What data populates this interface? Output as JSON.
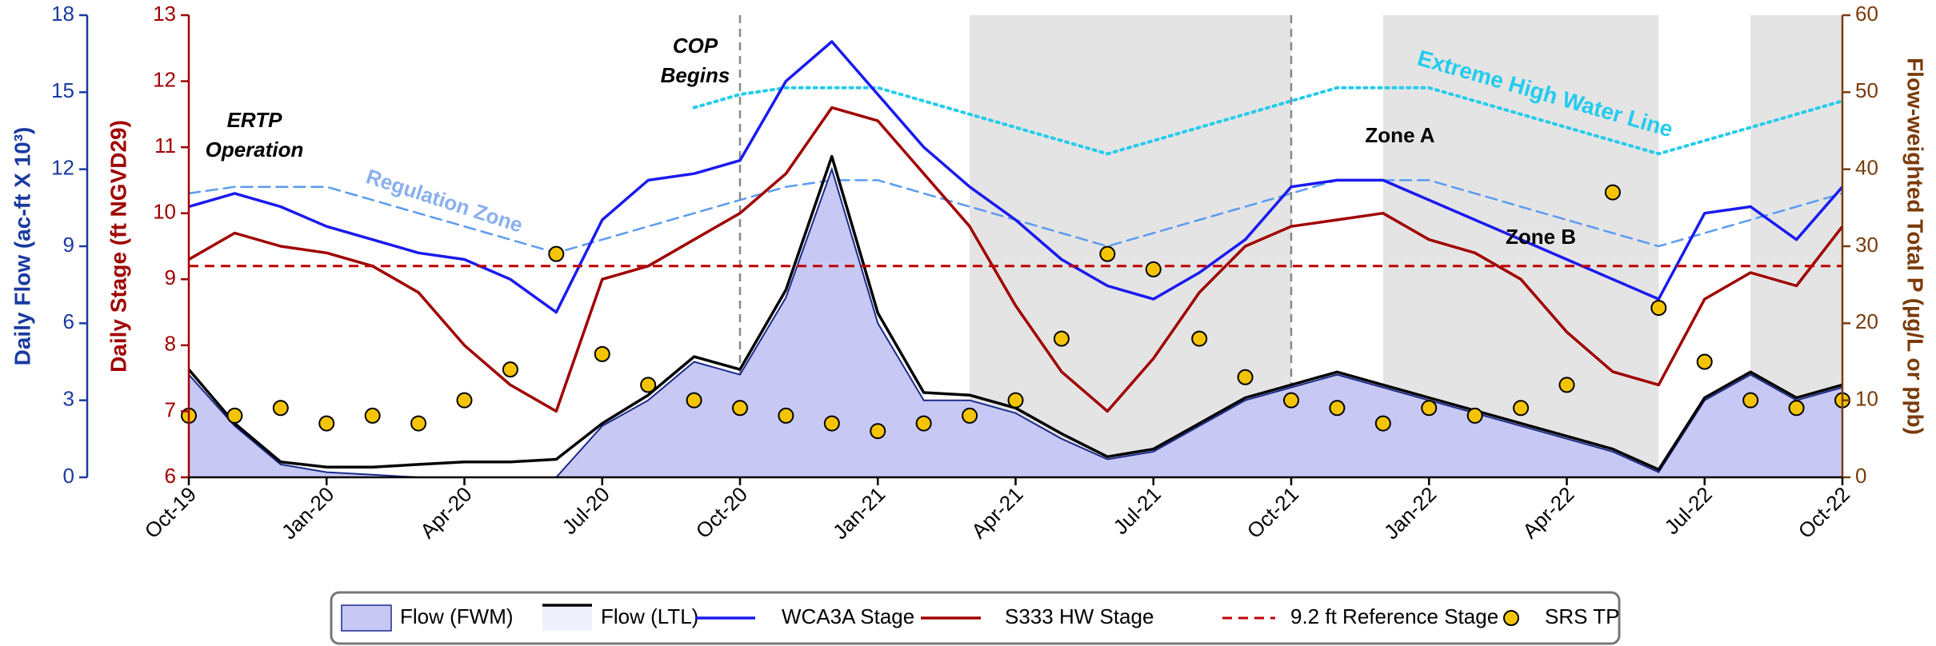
{
  "chart_data": {
    "type": "multi-axis-timeseries",
    "x": [
      "Oct-19",
      "Nov-19",
      "Dec-19",
      "Jan-20",
      "Feb-20",
      "Mar-20",
      "Apr-20",
      "May-20",
      "Jun-20",
      "Jul-20",
      "Aug-20",
      "Sep-20",
      "Oct-20",
      "Nov-20",
      "Dec-20",
      "Jan-21",
      "Feb-21",
      "Mar-21",
      "Apr-21",
      "May-21",
      "Jun-21",
      "Jul-21",
      "Aug-21",
      "Sep-21",
      "Oct-21",
      "Nov-21",
      "Dec-21",
      "Jan-22",
      "Feb-22",
      "Mar-22",
      "Apr-22",
      "May-22",
      "Jun-22",
      "Jul-22",
      "Aug-22",
      "Sep-22",
      "Oct-22"
    ],
    "xticks": [
      "Oct-19",
      "Jan-20",
      "Apr-20",
      "Jul-20",
      "Oct-20",
      "Jan-21",
      "Apr-21",
      "Jul-21",
      "Oct-21",
      "Jan-22",
      "Apr-22",
      "Jul-22",
      "Oct-22"
    ],
    "ylabel": "Daily Flow (ac-ft X 10³)",
    "ylim": [
      0,
      18
    ],
    "yticks": [
      0,
      3,
      6,
      9,
      12,
      15,
      18
    ],
    "y2label": "Daily Stage (ft NGVD29)",
    "y2lim": [
      6,
      13
    ],
    "y2ticks": [
      6,
      7,
      8,
      9,
      10,
      11,
      12,
      13
    ],
    "y3label": "Flow-weighted Total P (µg/L or ppb)",
    "y3lim": [
      0,
      60
    ],
    "y3ticks": [
      0,
      10,
      20,
      30,
      40,
      50,
      60
    ],
    "shaded_periods": [
      [
        "Mar-21",
        "Oct-21"
      ],
      [
        "Dec-21",
        "Jun-22"
      ],
      [
        "Aug-22",
        "Oct-22"
      ]
    ],
    "vertical_lines": [
      "Oct-20",
      "Oct-21"
    ],
    "series": [
      {
        "name": "Flow (FWM)",
        "type": "area",
        "axis": "y",
        "color": "#c8c8f5",
        "edge": "#1a2a8a",
        "values": [
          4,
          2,
          0.5,
          0.2,
          0.1,
          0,
          0,
          0,
          0,
          2,
          3,
          4.5,
          4,
          7,
          12,
          6,
          3,
          3,
          2.5,
          1.5,
          0.7,
          1,
          2,
          3,
          3.5,
          4,
          3.5,
          3,
          2.5,
          2,
          1.5,
          1,
          0.2,
          3,
          4,
          3,
          3.5
        ]
      },
      {
        "name": "Flow (LTL)",
        "type": "line",
        "axis": "y",
        "color": "#000000",
        "patch": "#eef0fc",
        "values": [
          4.2,
          2.1,
          0.6,
          0.4,
          0.4,
          0.5,
          0.6,
          0.6,
          0.7,
          2.1,
          3.2,
          4.7,
          4.2,
          7.3,
          12.5,
          6.4,
          3.3,
          3.2,
          2.7,
          1.7,
          0.8,
          1.1,
          2.1,
          3.1,
          3.6,
          4.1,
          3.6,
          3.1,
          2.6,
          2.1,
          1.6,
          1.1,
          0.3,
          3.1,
          4.1,
          3.1,
          3.6
        ]
      },
      {
        "name": "WCA3A Stage",
        "type": "line",
        "axis": "y2",
        "color": "#1a1aee",
        "values": [
          10.1,
          10.3,
          10.1,
          9.8,
          9.6,
          9.4,
          9.3,
          9.0,
          8.5,
          9.9,
          10.5,
          10.6,
          10.8,
          12.0,
          12.6,
          11.8,
          11.0,
          10.4,
          9.9,
          9.3,
          8.9,
          8.7,
          9.1,
          9.6,
          10.4,
          10.5,
          10.5,
          10.2,
          9.9,
          9.6,
          9.3,
          9.0,
          8.7,
          10.0,
          10.1,
          9.6,
          10.4
        ]
      },
      {
        "name": "S333 HW Stage",
        "type": "line",
        "axis": "y2",
        "color": "#a00000",
        "values": [
          9.3,
          9.7,
          9.5,
          9.4,
          9.2,
          8.8,
          8.0,
          7.4,
          7.0,
          9.0,
          9.2,
          9.6,
          10.0,
          10.6,
          11.6,
          11.4,
          10.6,
          9.8,
          8.6,
          7.6,
          7.0,
          7.8,
          8.8,
          9.5,
          9.8,
          9.9,
          10.0,
          9.6,
          9.4,
          9.0,
          8.2,
          7.6,
          7.4,
          8.7,
          9.1,
          8.9,
          9.8
        ]
      },
      {
        "name": "9.2 ft Reference Stage",
        "type": "hline",
        "axis": "y2",
        "color": "#c00000",
        "value": 9.2
      },
      {
        "name": "SRS TP",
        "type": "scatter",
        "axis": "y3",
        "color": "#f5c400",
        "values": [
          8,
          8,
          9,
          7,
          8,
          7,
          10,
          14,
          29,
          16,
          12,
          10,
          9,
          8,
          7,
          6,
          7,
          8,
          10,
          18,
          29,
          27,
          18,
          13,
          10,
          9,
          7,
          9,
          8,
          9,
          12,
          37,
          22,
          15,
          10,
          9,
          10
        ]
      }
    ],
    "guides": [
      {
        "axis": "y2",
        "color": "#22ccee",
        "style": "dotted",
        "values": [
          null,
          null,
          null,
          null,
          null,
          null,
          null,
          null,
          null,
          null,
          null,
          11.6,
          11.8,
          11.9,
          11.9,
          11.9,
          11.7,
          11.5,
          11.3,
          11.1,
          10.9,
          11.1,
          11.3,
          11.5,
          11.7,
          11.9,
          11.9,
          11.9,
          11.7,
          11.5,
          11.3,
          11.1,
          10.9,
          11.1,
          11.3,
          11.5,
          11.7
        ]
      },
      {
        "axis": "y2",
        "color": "#5b9bf0",
        "style": "dashed",
        "values": [
          10.3,
          10.4,
          10.4,
          10.4,
          10.2,
          10.0,
          9.8,
          9.6,
          9.4,
          9.6,
          9.8,
          10.0,
          10.2,
          10.4,
          10.5,
          10.5,
          10.3,
          10.1,
          9.9,
          9.7,
          9.5,
          9.7,
          9.9,
          10.1,
          10.3,
          10.5,
          10.5,
          10.5,
          10.3,
          10.1,
          9.9,
          9.7,
          9.5,
          9.7,
          9.9,
          10.1,
          10.3
        ]
      }
    ],
    "annotations": [
      {
        "lines": [
          "ERTP",
          "Operation"
        ],
        "color": "#000000"
      },
      {
        "lines": [
          "COP",
          "Begins"
        ],
        "color": "#000000"
      },
      {
        "lines": [
          "Regulation Zone"
        ],
        "color": "#8ab0ee"
      },
      {
        "lines": [
          "Extreme High Water Line"
        ],
        "color": "#22ccee"
      },
      {
        "lines": [
          "Zone A"
        ],
        "color": "#000000"
      },
      {
        "lines": [
          "Zone B"
        ],
        "color": "#000000"
      }
    ]
  }
}
